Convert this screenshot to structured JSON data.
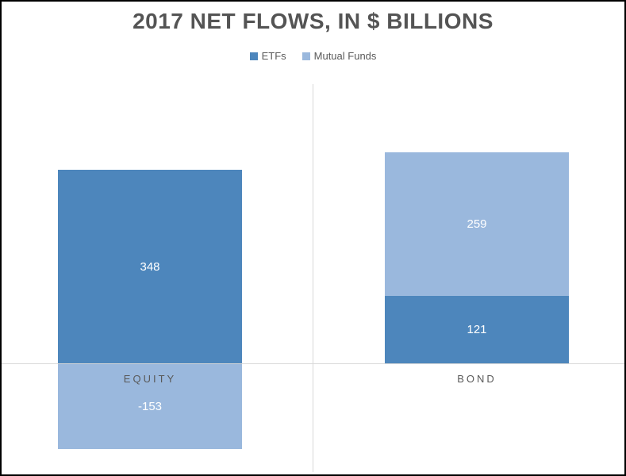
{
  "title": "2017 NET FLOWS, IN $ BILLIONS",
  "legend": {
    "position": "top",
    "items": [
      {
        "label": "ETFs",
        "color": "#4d86bc"
      },
      {
        "label": "Mutual Funds",
        "color": "#9ab8dd"
      }
    ]
  },
  "chart_data": {
    "type": "bar",
    "stacked": true,
    "orientation": "vertical",
    "title": "2017 NET FLOWS, IN $ BILLIONS",
    "categories": [
      "EQUITY",
      "BOND"
    ],
    "series": [
      {
        "name": "ETFs",
        "color": "#4d86bc",
        "values": [
          348,
          121
        ]
      },
      {
        "name": "Mutual Funds",
        "color": "#9ab8dd",
        "values": [
          -153,
          259
        ]
      }
    ],
    "baseline_value": 0,
    "xlabel": "",
    "ylabel": "",
    "axis_ticks_visible": false,
    "grid": "baseline-and-category-divider",
    "gridline_color": "#d9d9d9",
    "value_label_color": "#ffffff",
    "category_label_color": "#595959"
  }
}
